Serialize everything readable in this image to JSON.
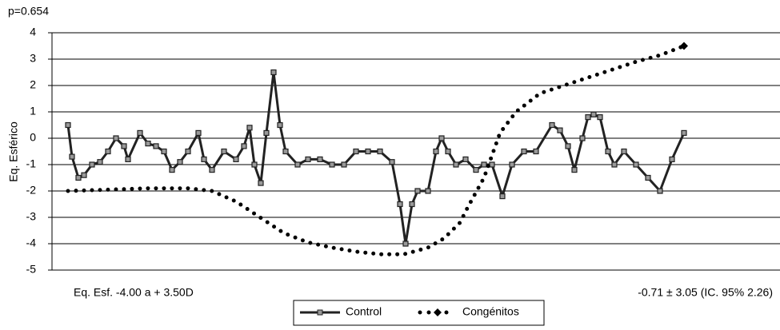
{
  "chart_data": {
    "type": "line",
    "title": "p=0.654",
    "y_label": "Eq. Esférico",
    "annotations": [
      "Eq. Esf. -4.00 a + 3.50D",
      "-0.71 ± 3.05 (IC. 95% 2.26)"
    ],
    "ylim": [
      -5,
      4
    ],
    "yticks": [
      -5,
      -4,
      -3,
      -2,
      -1,
      0,
      1,
      2,
      3,
      4
    ],
    "xlim": [
      -2,
      89
    ],
    "grid": true,
    "legend": "bottom",
    "series": [
      {
        "name": "Control",
        "color": "#222222",
        "x": [
          0,
          0.5,
          1.3,
          2,
          3,
          4,
          5,
          6,
          7,
          7.5,
          9,
          10,
          11,
          12,
          13,
          14,
          15,
          16.3,
          17,
          18,
          19.5,
          21,
          22,
          22.7,
          23.3,
          24.1,
          24.8,
          25.7,
          26.5,
          27.2,
          28.7,
          30,
          31.5,
          33,
          34.5,
          36,
          37.5,
          39,
          40.5,
          41.5,
          42.2,
          43,
          43.7,
          45,
          46,
          46.7,
          47.5,
          48.5,
          49.7,
          51,
          52,
          53,
          54.3,
          55.5,
          57,
          58.5,
          60.5,
          61.5,
          62.5,
          63.3,
          64.3,
          65,
          65.7,
          66.5,
          67.5,
          68.3,
          69.5,
          71,
          72.5,
          74,
          75.5,
          77
        ],
        "values": [
          0.5,
          -0.7,
          -1.5,
          -1.4,
          -1.0,
          -0.9,
          -0.5,
          0,
          -0.3,
          -0.8,
          0.2,
          -0.2,
          -0.3,
          -0.5,
          -1.2,
          -0.9,
          -0.5,
          0.2,
          -0.8,
          -1.2,
          -0.5,
          -0.8,
          -0.3,
          0.4,
          -1.0,
          -1.7,
          0.2,
          2.5,
          0.5,
          -0.5,
          -1.0,
          -0.8,
          -0.8,
          -1.0,
          -1.0,
          -0.5,
          -0.5,
          -0.5,
          -0.9,
          -2.5,
          -4.0,
          -2.5,
          -2.0,
          -2.0,
          -0.5,
          0,
          -0.5,
          -1.0,
          -0.8,
          -1.2,
          -1.0,
          -1.0,
          -2.2,
          -1.0,
          -0.5,
          -0.5,
          0.5,
          0.3,
          -0.3,
          -1.2,
          0,
          0.8,
          0.9,
          0.8,
          -0.5,
          -1.0,
          -0.5,
          -1.0,
          -1.5,
          -2.0,
          -0.8,
          0.2
        ]
      },
      {
        "name": "Congénitos",
        "color": "#000000",
        "x": [
          0,
          5,
          10,
          15,
          18,
          21,
          24,
          27,
          30,
          33,
          36,
          39,
          42,
          45,
          47,
          49,
          50,
          52,
          54,
          56,
          59,
          62,
          65,
          68,
          71,
          74,
          77
        ],
        "values": [
          -2.0,
          -1.95,
          -1.9,
          -1.9,
          -2.0,
          -2.4,
          -3.0,
          -3.6,
          -3.95,
          -4.15,
          -4.3,
          -4.4,
          -4.4,
          -4.15,
          -3.8,
          -3.2,
          -2.6,
          -1.5,
          0.2,
          1.0,
          1.7,
          2.0,
          2.3,
          2.6,
          2.9,
          3.15,
          3.5
        ]
      }
    ]
  }
}
